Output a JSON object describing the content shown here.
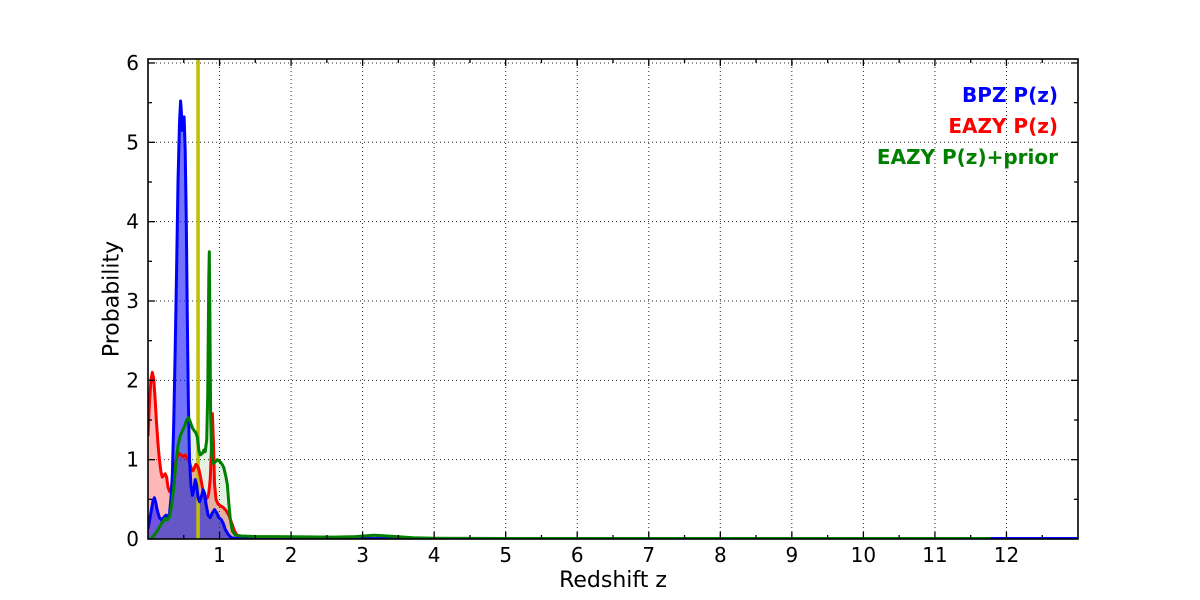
{
  "figure": {
    "background": "#ffffff",
    "axis_color": "#000000"
  },
  "labels": {
    "xlabel": "Redshift z",
    "ylabel": "Probability"
  },
  "chart_data": {
    "type": "line",
    "title": "",
    "xlabel": "Redshift z",
    "ylabel": "Probability",
    "xlim": [
      0,
      13.0
    ],
    "ylim": [
      0,
      6.05
    ],
    "grid": {
      "on": true,
      "style": "dotted",
      "color": "#000000"
    },
    "xticks": [
      {
        "v": 1,
        "label": "1"
      },
      {
        "v": 2,
        "label": "2"
      },
      {
        "v": 3,
        "label": "3"
      },
      {
        "v": 4,
        "label": "4"
      },
      {
        "v": 5,
        "label": "5"
      },
      {
        "v": 6,
        "label": "6"
      },
      {
        "v": 7,
        "label": "7"
      },
      {
        "v": 8,
        "label": "8"
      },
      {
        "v": 9,
        "label": "9"
      },
      {
        "v": 10,
        "label": "10"
      },
      {
        "v": 11,
        "label": "11"
      },
      {
        "v": 12,
        "label": "12"
      },
      {
        "v": 13,
        "label": ""
      }
    ],
    "yticks": [
      {
        "v": 0,
        "label": "0"
      },
      {
        "v": 1,
        "label": "1"
      },
      {
        "v": 2,
        "label": "2"
      },
      {
        "v": 3,
        "label": "3"
      },
      {
        "v": 4,
        "label": "4"
      },
      {
        "v": 5,
        "label": "5"
      },
      {
        "v": 6,
        "label": "6"
      }
    ],
    "minor_tick_step": 0.5,
    "marker_line": {
      "z": 0.7,
      "color": "#bfbf00"
    },
    "legend": {
      "position": "upper right",
      "entries": [
        {
          "label": "BPZ P(z)",
          "color": "#0000ff"
        },
        {
          "label": "EAZY P(z)",
          "color": "#ff0000"
        },
        {
          "label": "EAZY P(z)+prior",
          "color": "#008000"
        }
      ]
    },
    "series": [
      {
        "name": "EAZY P(z)",
        "color": "#ff0000",
        "line_width": 3,
        "fill_opacity": 0.28,
        "points": [
          [
            0,
            1.3
          ],
          [
            0.02,
            1.7
          ],
          [
            0.04,
            2.0
          ],
          [
            0.06,
            2.1
          ],
          [
            0.08,
            2.02
          ],
          [
            0.1,
            1.75
          ],
          [
            0.12,
            1.45
          ],
          [
            0.14,
            1.2
          ],
          [
            0.16,
            1.0
          ],
          [
            0.18,
            0.85
          ],
          [
            0.2,
            0.78
          ],
          [
            0.22,
            0.8
          ],
          [
            0.24,
            0.82
          ],
          [
            0.26,
            0.78
          ],
          [
            0.28,
            0.65
          ],
          [
            0.3,
            0.6
          ],
          [
            0.32,
            0.63
          ],
          [
            0.34,
            0.7
          ],
          [
            0.36,
            0.8
          ],
          [
            0.38,
            0.92
          ],
          [
            0.4,
            1.02
          ],
          [
            0.43,
            1.08
          ],
          [
            0.46,
            1.06
          ],
          [
            0.49,
            1.04
          ],
          [
            0.52,
            1.06
          ],
          [
            0.55,
            1.02
          ],
          [
            0.58,
            0.96
          ],
          [
            0.61,
            0.88
          ],
          [
            0.63,
            0.86
          ],
          [
            0.65,
            0.9
          ],
          [
            0.67,
            0.94
          ],
          [
            0.69,
            0.92
          ],
          [
            0.71,
            0.88
          ],
          [
            0.73,
            0.8
          ],
          [
            0.75,
            0.7
          ],
          [
            0.77,
            0.6
          ],
          [
            0.79,
            0.52
          ],
          [
            0.81,
            0.5
          ],
          [
            0.83,
            0.52
          ],
          [
            0.85,
            0.58
          ],
          [
            0.87,
            0.75
          ],
          [
            0.885,
            1.1
          ],
          [
            0.9,
            1.58
          ],
          [
            0.915,
            1.2
          ],
          [
            0.93,
            0.7
          ],
          [
            0.95,
            0.5
          ],
          [
            0.98,
            0.44
          ],
          [
            1.01,
            0.42
          ],
          [
            1.05,
            0.4
          ],
          [
            1.09,
            0.36
          ],
          [
            1.13,
            0.3
          ],
          [
            1.17,
            0.2
          ],
          [
            1.21,
            0.1
          ],
          [
            1.25,
            0.04
          ],
          [
            1.3,
            0.012
          ],
          [
            1.5,
            0.006
          ],
          [
            2,
            0.005
          ],
          [
            5,
            0.004
          ],
          [
            9,
            0.004
          ],
          [
            13,
            0.004
          ]
        ]
      },
      {
        "name": "BPZ P(z)",
        "color": "#0000ff",
        "line_width": 3,
        "fill_opacity": 0.55,
        "points": [
          [
            0,
            0.13
          ],
          [
            0.02,
            0.22
          ],
          [
            0.05,
            0.38
          ],
          [
            0.07,
            0.48
          ],
          [
            0.09,
            0.52
          ],
          [
            0.11,
            0.45
          ],
          [
            0.13,
            0.36
          ],
          [
            0.16,
            0.27
          ],
          [
            0.19,
            0.24
          ],
          [
            0.22,
            0.27
          ],
          [
            0.25,
            0.3
          ],
          [
            0.28,
            0.28
          ],
          [
            0.3,
            0.32
          ],
          [
            0.32,
            0.5
          ],
          [
            0.34,
            0.8
          ],
          [
            0.36,
            1.5
          ],
          [
            0.38,
            2.4
          ],
          [
            0.4,
            3.4
          ],
          [
            0.42,
            4.5
          ],
          [
            0.44,
            5.25
          ],
          [
            0.455,
            5.52
          ],
          [
            0.465,
            5.4
          ],
          [
            0.475,
            5.15
          ],
          [
            0.49,
            5.28
          ],
          [
            0.505,
            5.32
          ],
          [
            0.52,
            4.9
          ],
          [
            0.535,
            4.0
          ],
          [
            0.55,
            2.8
          ],
          [
            0.565,
            1.7
          ],
          [
            0.58,
            1.0
          ],
          [
            0.6,
            0.68
          ],
          [
            0.62,
            0.55
          ],
          [
            0.64,
            0.62
          ],
          [
            0.66,
            0.75
          ],
          [
            0.68,
            0.68
          ],
          [
            0.7,
            0.52
          ],
          [
            0.72,
            0.47
          ],
          [
            0.75,
            0.55
          ],
          [
            0.77,
            0.62
          ],
          [
            0.79,
            0.58
          ],
          [
            0.81,
            0.45
          ],
          [
            0.84,
            0.3
          ],
          [
            0.87,
            0.27
          ],
          [
            0.9,
            0.33
          ],
          [
            0.93,
            0.37
          ],
          [
            0.96,
            0.33
          ],
          [
            0.99,
            0.27
          ],
          [
            1.02,
            0.25
          ],
          [
            1.05,
            0.2
          ],
          [
            1.08,
            0.12
          ],
          [
            1.12,
            0.06
          ],
          [
            1.16,
            0.02
          ],
          [
            1.22,
            0.008
          ],
          [
            1.4,
            0.006
          ],
          [
            2,
            0.005
          ],
          [
            4,
            0.005
          ],
          [
            7,
            0.005
          ],
          [
            10,
            0.005
          ],
          [
            12,
            0.006
          ],
          [
            13,
            0.006
          ]
        ]
      },
      {
        "name": "EAZY P(z)+prior",
        "color": "#008000",
        "line_width": 3,
        "fill_opacity": 0.11,
        "points": [
          [
            0.04,
            0.005
          ],
          [
            0.08,
            0.04
          ],
          [
            0.12,
            0.09
          ],
          [
            0.16,
            0.15
          ],
          [
            0.2,
            0.21
          ],
          [
            0.24,
            0.26
          ],
          [
            0.27,
            0.24
          ],
          [
            0.3,
            0.28
          ],
          [
            0.33,
            0.42
          ],
          [
            0.36,
            0.65
          ],
          [
            0.39,
            0.95
          ],
          [
            0.42,
            1.18
          ],
          [
            0.45,
            1.3
          ],
          [
            0.48,
            1.36
          ],
          [
            0.51,
            1.42
          ],
          [
            0.54,
            1.5
          ],
          [
            0.565,
            1.53
          ],
          [
            0.59,
            1.48
          ],
          [
            0.62,
            1.4
          ],
          [
            0.65,
            1.36
          ],
          [
            0.67,
            1.34
          ],
          [
            0.69,
            1.28
          ],
          [
            0.71,
            1.12
          ],
          [
            0.73,
            1.06
          ],
          [
            0.76,
            1.08
          ],
          [
            0.78,
            1.12
          ],
          [
            0.8,
            1.1
          ],
          [
            0.82,
            1.25
          ],
          [
            0.835,
            1.8
          ],
          [
            0.85,
            3.3
          ],
          [
            0.857,
            3.62
          ],
          [
            0.865,
            2.8
          ],
          [
            0.875,
            1.6
          ],
          [
            0.89,
            1.05
          ],
          [
            0.91,
            0.95
          ],
          [
            0.94,
            0.97
          ],
          [
            0.97,
            1.0
          ],
          [
            1.0,
            0.98
          ],
          [
            1.03,
            0.95
          ],
          [
            1.06,
            0.9
          ],
          [
            1.09,
            0.78
          ],
          [
            1.11,
            0.68
          ],
          [
            1.13,
            0.45
          ],
          [
            1.15,
            0.25
          ],
          [
            1.18,
            0.1
          ],
          [
            1.22,
            0.05
          ],
          [
            1.3,
            0.038
          ],
          [
            1.5,
            0.032
          ],
          [
            1.8,
            0.03
          ],
          [
            2.2,
            0.026
          ],
          [
            2.6,
            0.024
          ],
          [
            2.9,
            0.03
          ],
          [
            3.15,
            0.048
          ],
          [
            3.4,
            0.035
          ],
          [
            3.7,
            0.015
          ],
          [
            4.0,
            0.01
          ],
          [
            4.5,
            0.007
          ],
          [
            5.5,
            0.006
          ],
          [
            7,
            0.006
          ],
          [
            9,
            0.006
          ],
          [
            11,
            0.006
          ],
          [
            11.78,
            0.006
          ]
        ]
      }
    ]
  }
}
